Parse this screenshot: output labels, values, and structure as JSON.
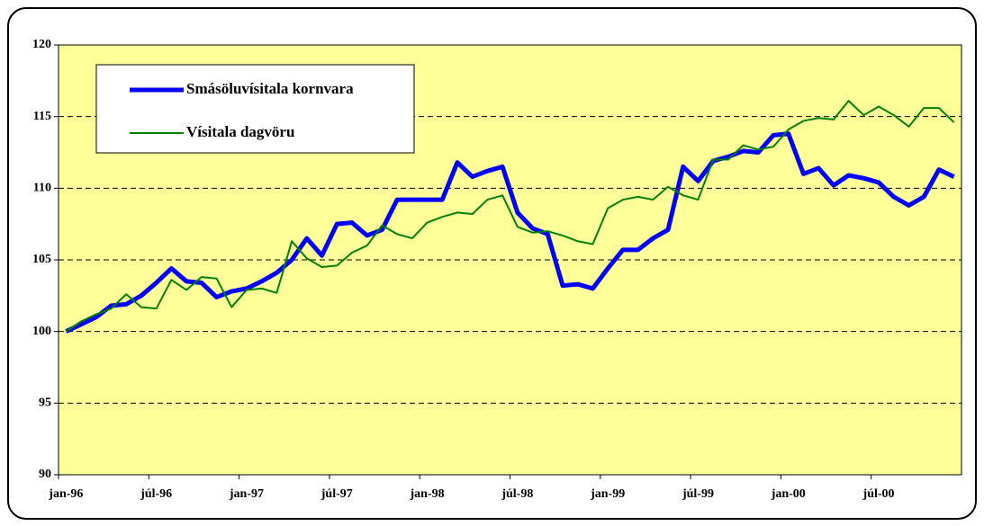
{
  "chart_data": {
    "type": "line",
    "categories": [
      "jan-96",
      null,
      null,
      null,
      null,
      null,
      "júl-96",
      null,
      null,
      null,
      null,
      null,
      "jan-97",
      null,
      null,
      null,
      null,
      null,
      "júl-97",
      null,
      null,
      null,
      null,
      null,
      "jan-98",
      null,
      null,
      null,
      null,
      null,
      "júl-98",
      null,
      null,
      null,
      null,
      null,
      "jan-99",
      null,
      null,
      null,
      null,
      null,
      "júl-99",
      null,
      null,
      null,
      null,
      null,
      "jan-00",
      null,
      null,
      null,
      null,
      null,
      "júl-00",
      null,
      null,
      null,
      null,
      null
    ],
    "series": [
      {
        "name": "Smásöluvísitala kornvara",
        "color": "#0000ff",
        "values": [
          100.0,
          100.5,
          101.0,
          101.8,
          101.9,
          102.5,
          103.4,
          104.4,
          103.5,
          103.4,
          102.4,
          102.8,
          103.0,
          103.5,
          104.1,
          105.0,
          106.5,
          105.3,
          107.5,
          107.6,
          106.7,
          107.1,
          109.2,
          109.2,
          109.2,
          109.2,
          111.8,
          110.8,
          111.2,
          111.5,
          108.3,
          107.2,
          106.8,
          103.2,
          103.3,
          103.0,
          104.4,
          105.7,
          105.7,
          106.5,
          107.1,
          111.5,
          110.5,
          111.9,
          112.2,
          112.6,
          112.5,
          113.7,
          113.8,
          111.0,
          111.4,
          110.2,
          110.9,
          110.7,
          110.4,
          109.4,
          108.8,
          109.4,
          111.3,
          110.8
        ]
      },
      {
        "name": "Vísitala dagvöru",
        "color": "#008000",
        "values": [
          100.0,
          100.7,
          101.2,
          101.6,
          102.6,
          101.7,
          101.6,
          103.6,
          102.9,
          103.8,
          103.7,
          101.7,
          102.9,
          103.0,
          102.7,
          106.3,
          105.1,
          104.5,
          104.6,
          105.5,
          106.0,
          107.4,
          106.8,
          106.5,
          107.6,
          108.0,
          108.3,
          108.2,
          109.2,
          109.5,
          107.3,
          106.9,
          107.0,
          106.7,
          106.3,
          106.1,
          108.6,
          109.2,
          109.4,
          109.2,
          110.1,
          109.5,
          109.2,
          112.0,
          112.0,
          113.0,
          112.7,
          112.9,
          114.1,
          114.7,
          114.9,
          114.8,
          116.1,
          115.1,
          115.7,
          115.1,
          114.3,
          115.6,
          115.6,
          114.6
        ]
      }
    ],
    "ylim": [
      90,
      120
    ],
    "yticks": [
      90,
      95,
      100,
      105,
      110,
      115,
      120
    ],
    "grid": true,
    "legend": "upper left"
  }
}
